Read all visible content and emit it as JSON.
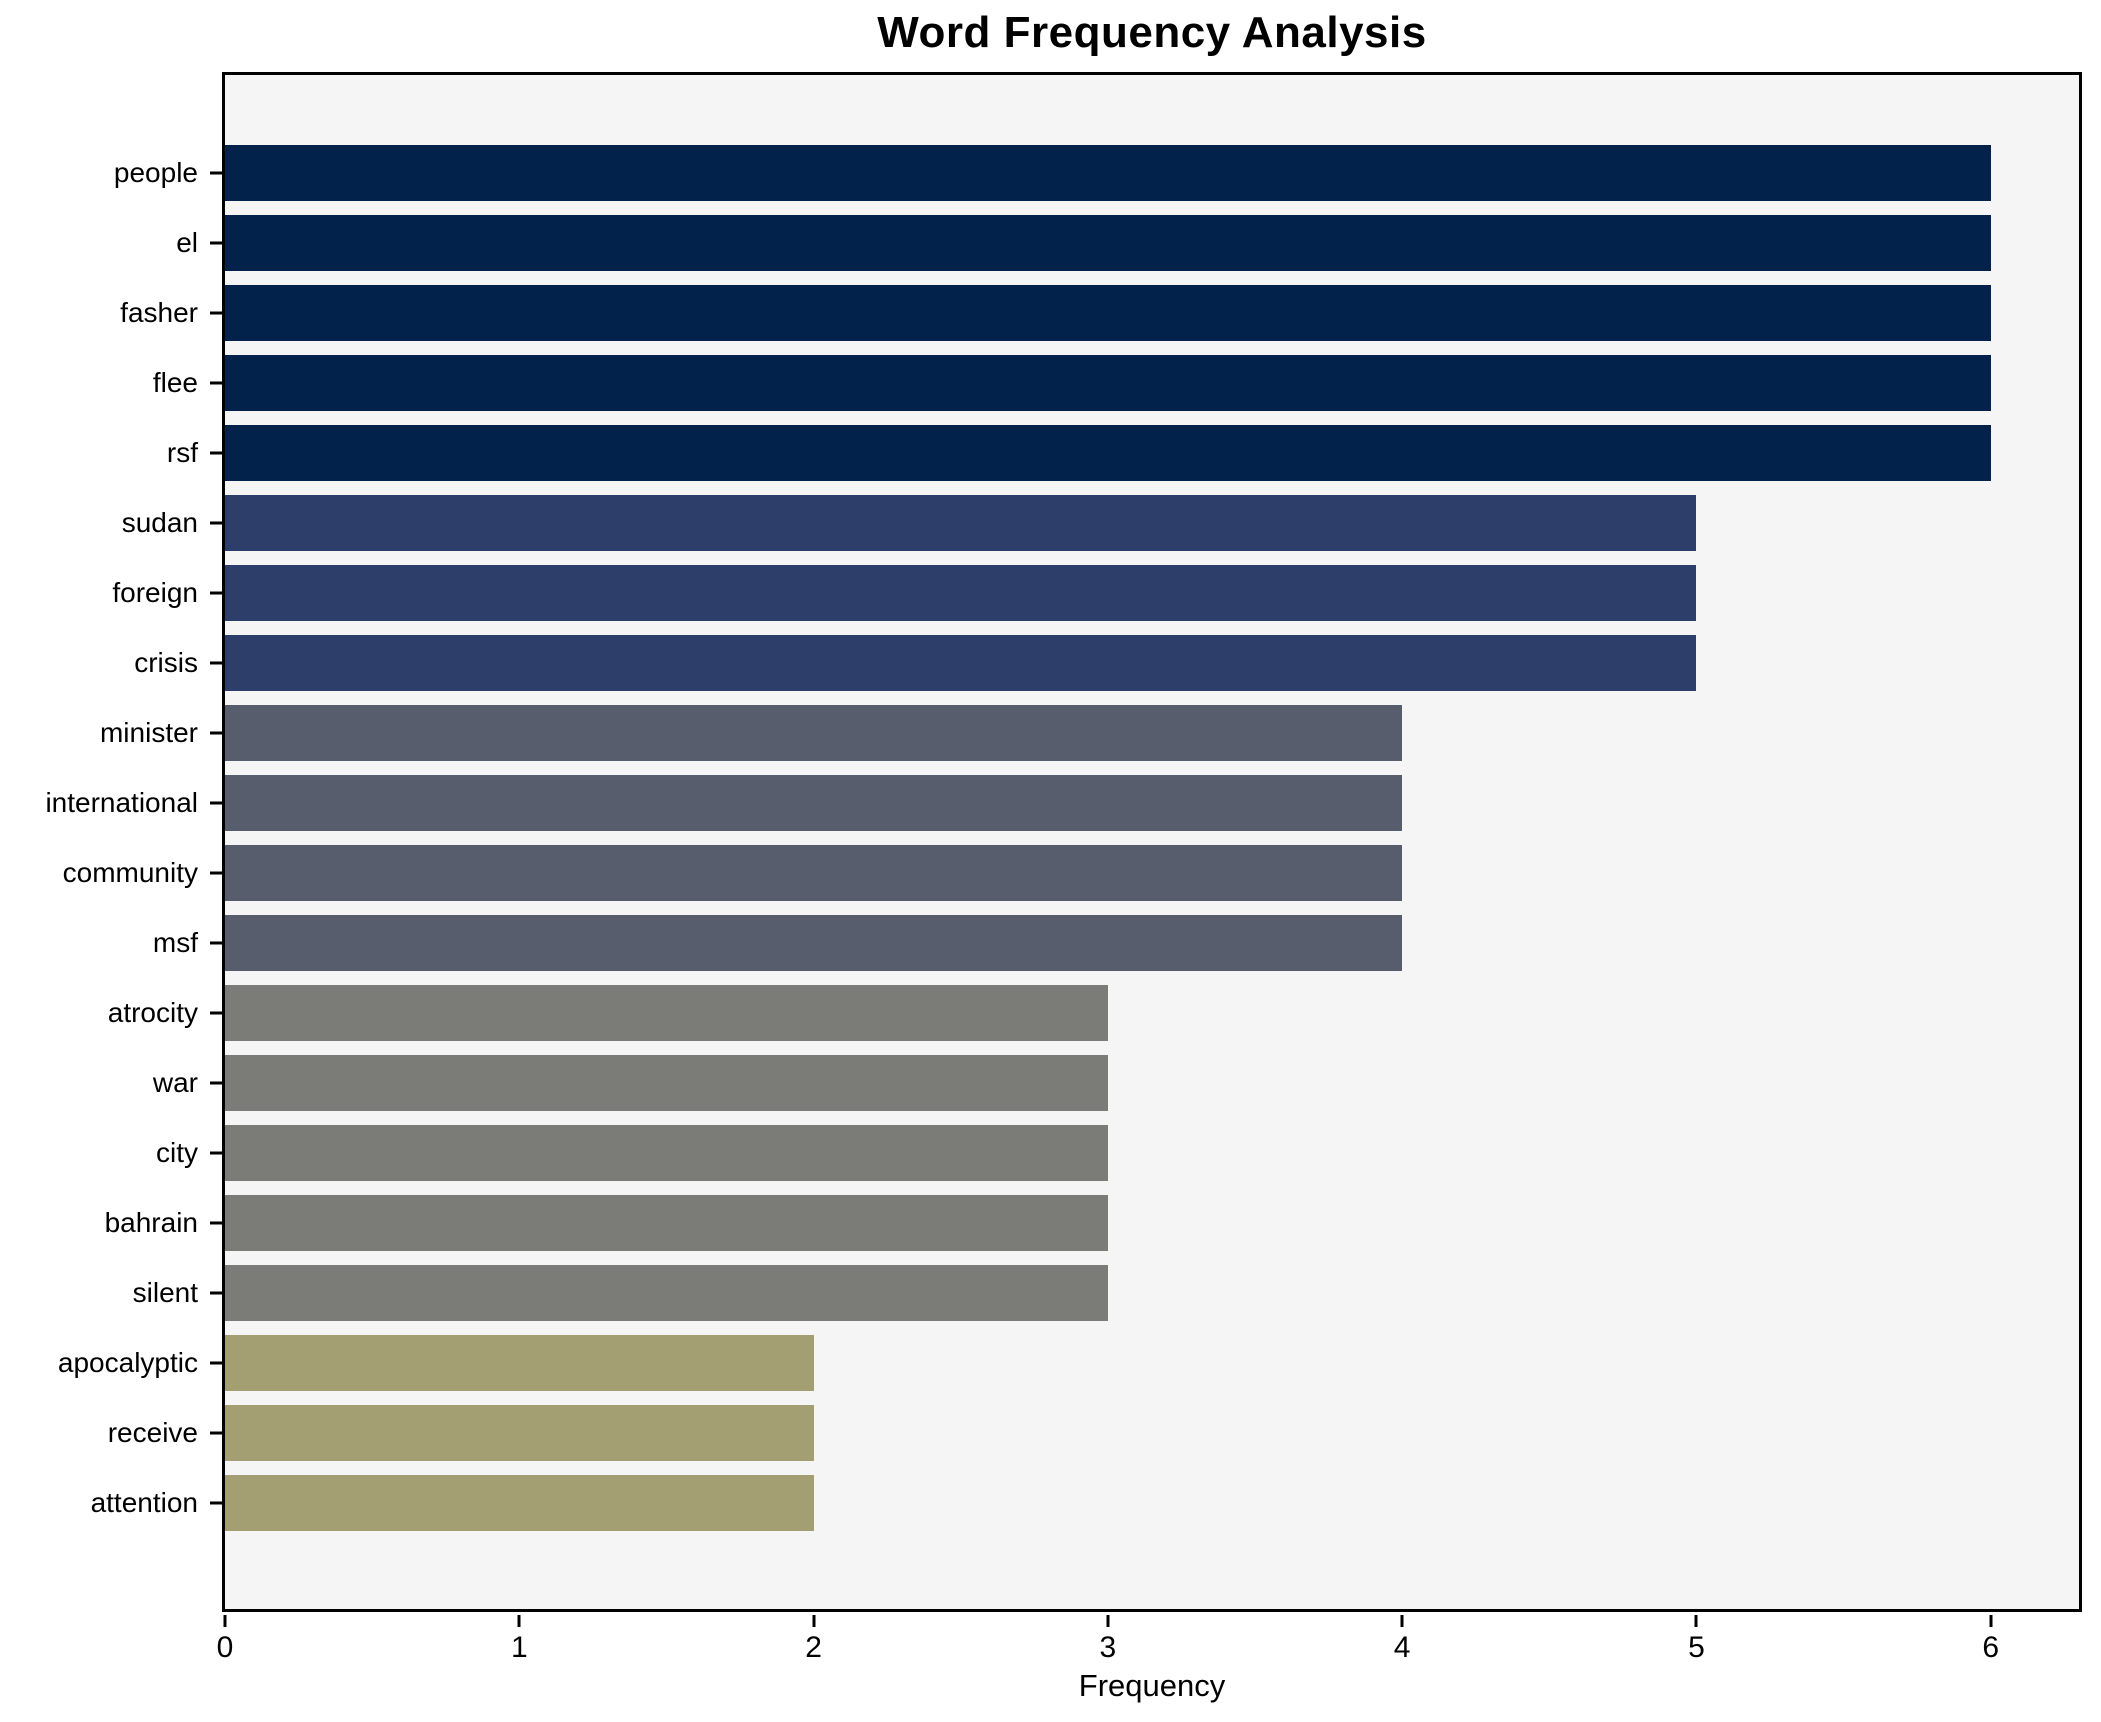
{
  "chart_data": {
    "type": "bar",
    "orientation": "horizontal",
    "title": "Word Frequency Analysis",
    "xlabel": "Frequency",
    "ylabel": "",
    "categories": [
      "people",
      "el",
      "fasher",
      "flee",
      "rsf",
      "sudan",
      "foreign",
      "crisis",
      "minister",
      "international",
      "community",
      "msf",
      "atrocity",
      "war",
      "city",
      "bahrain",
      "silent",
      "apocalyptic",
      "receive",
      "attention"
    ],
    "values": [
      6,
      6,
      6,
      6,
      6,
      5,
      5,
      5,
      4,
      4,
      4,
      4,
      3,
      3,
      3,
      3,
      3,
      2,
      2,
      2
    ],
    "xlim": [
      0,
      6.3
    ],
    "x_ticks": [
      0,
      1,
      2,
      3,
      4,
      5,
      6
    ],
    "grid": false,
    "legend": false,
    "plot_background": "#f5f5f6",
    "figure_background": "#ffffff",
    "spine_color": "#000000",
    "value_colors": {
      "6": "#02214b",
      "5": "#2d3e6b",
      "4": "#575d6d",
      "3": "#7b7b77",
      "2": "#a49e73"
    }
  }
}
